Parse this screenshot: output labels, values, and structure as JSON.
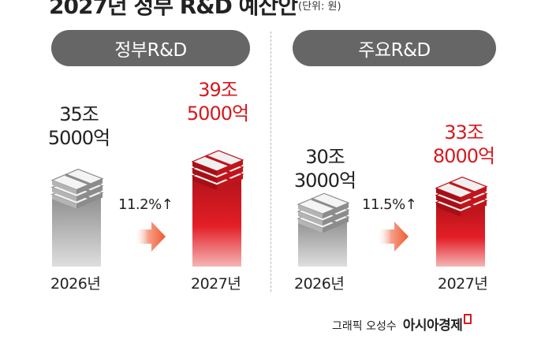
{
  "header": {
    "title": "2027년 정부 R&D 예산안",
    "unit": "(단위: 원)"
  },
  "chart_data": [
    {
      "type": "bar",
      "title": "정부R&D",
      "categories": [
        "2026년",
        "2027년"
      ],
      "values": [
        35.5,
        39.5
      ],
      "value_labels": [
        [
          "35조",
          "5000억"
        ],
        [
          "39조",
          "5000억"
        ]
      ],
      "growth_label": "11.2%↑",
      "colors": [
        "#a9a9a9",
        "#d51a1f"
      ]
    },
    {
      "type": "bar",
      "title": "주요R&D",
      "categories": [
        "2026년",
        "2027년"
      ],
      "values": [
        30.3,
        33.8
      ],
      "value_labels": [
        [
          "30조",
          "3000억"
        ],
        [
          "33조",
          "8000억"
        ]
      ],
      "growth_label": "11.5%↑",
      "colors": [
        "#a9a9a9",
        "#d51a1f"
      ]
    }
  ],
  "footer": {
    "credit": "그래픽 오성수",
    "brand": "아시아경제"
  }
}
